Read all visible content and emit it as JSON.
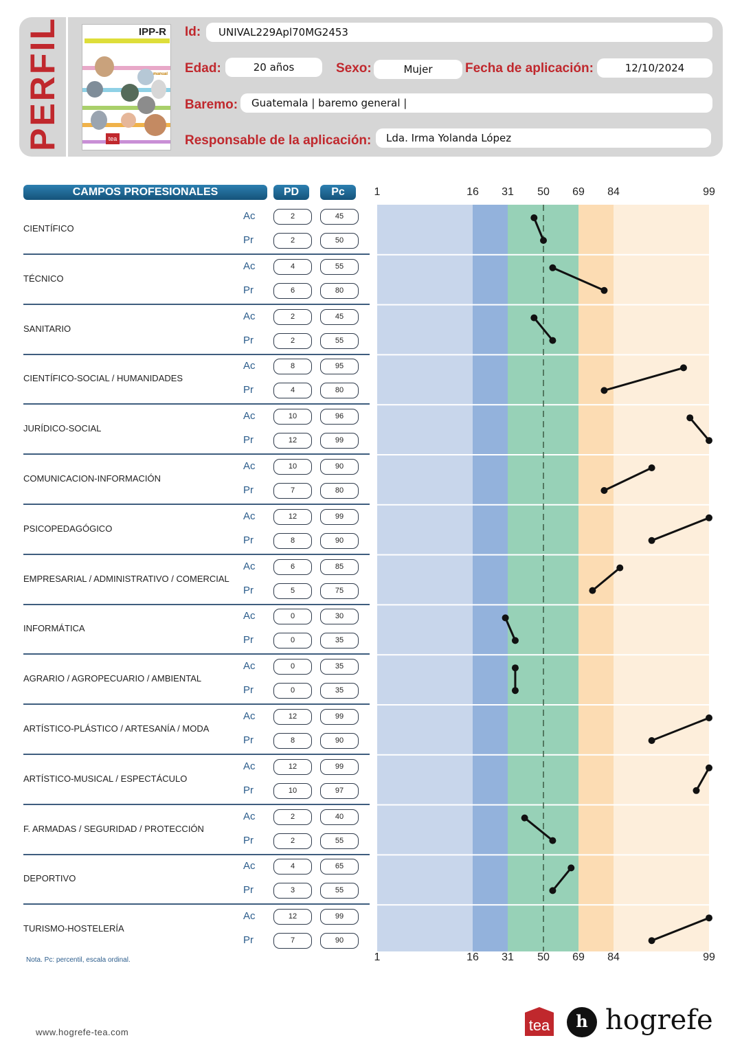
{
  "header": {
    "title": "PERFIL",
    "cover": {
      "title": "IPP-R",
      "manual": "manual",
      "publisher": "tea"
    },
    "id_label": "Id:",
    "id_value": "UNIVAL229Apl70MG2453",
    "edad_label": "Edad:",
    "edad_value": "20 años",
    "sexo_label": "Sexo:",
    "sexo_value": "Mujer",
    "fecha_label": "Fecha de aplicación:",
    "fecha_value": "12/10/2024",
    "baremo_label": "Baremo:",
    "baremo_value": "Guatemala | baremo general |",
    "responsable_label": "Responsable de la aplicación:",
    "responsable_value": "Lda. Irma Yolanda López"
  },
  "table": {
    "col_campos": "CAMPOS PROFESIONALES",
    "col_pd": "PD",
    "col_pc": "Pc",
    "type_ac": "Ac",
    "type_pr": "Pr",
    "rows": [
      {
        "name": "CIENTÍFICO",
        "ac_pd": "2",
        "ac_pc": "45",
        "pr_pd": "2",
        "pr_pc": "50"
      },
      {
        "name": "TÉCNICO",
        "ac_pd": "4",
        "ac_pc": "55",
        "pr_pd": "6",
        "pr_pc": "80"
      },
      {
        "name": "SANITARIO",
        "ac_pd": "2",
        "ac_pc": "45",
        "pr_pd": "2",
        "pr_pc": "55"
      },
      {
        "name": "CIENTÍFICO-SOCIAL / HUMANIDADES",
        "ac_pd": "8",
        "ac_pc": "95",
        "pr_pd": "4",
        "pr_pc": "80"
      },
      {
        "name": "JURÍDICO-SOCIAL",
        "ac_pd": "10",
        "ac_pc": "96",
        "pr_pd": "12",
        "pr_pc": "99"
      },
      {
        "name": "COMUNICACION-INFORMACIÓN",
        "ac_pd": "10",
        "ac_pc": "90",
        "pr_pd": "7",
        "pr_pc": "80"
      },
      {
        "name": "PSICOPEDAGÓGICO",
        "ac_pd": "12",
        "ac_pc": "99",
        "pr_pd": "8",
        "pr_pc": "90"
      },
      {
        "name": "EMPRESARIAL / ADMINISTRATIVO / COMERCIAL",
        "ac_pd": "6",
        "ac_pc": "85",
        "pr_pd": "5",
        "pr_pc": "75"
      },
      {
        "name": "INFORMÁTICA",
        "ac_pd": "0",
        "ac_pc": "30",
        "pr_pd": "0",
        "pr_pc": "35"
      },
      {
        "name": "AGRARIO / AGROPECUARIO / AMBIENTAL",
        "ac_pd": "0",
        "ac_pc": "35",
        "pr_pd": "0",
        "pr_pc": "35"
      },
      {
        "name": "ARTÍSTICO-PLÁSTICO / ARTESANÍA / MODA",
        "ac_pd": "12",
        "ac_pc": "99",
        "pr_pd": "8",
        "pr_pc": "90"
      },
      {
        "name": "ARTÍSTICO-MUSICAL / ESPECTÁCULO",
        "ac_pd": "12",
        "ac_pc": "99",
        "pr_pd": "10",
        "pr_pc": "97"
      },
      {
        "name": "F. ARMADAS / SEGURIDAD / PROTECCIÓN",
        "ac_pd": "2",
        "ac_pc": "40",
        "pr_pd": "2",
        "pr_pc": "55"
      },
      {
        "name": "DEPORTIVO",
        "ac_pd": "4",
        "ac_pc": "65",
        "pr_pd": "3",
        "pr_pc": "55"
      },
      {
        "name": "TURISMO-HOSTELERÍA",
        "ac_pd": "12",
        "ac_pc": "99",
        "pr_pd": "7",
        "pr_pc": "90"
      }
    ]
  },
  "chart_data": {
    "type": "line",
    "x_axis": "ordinal percentile scale",
    "ticks": [
      "1",
      "16",
      "31",
      "50",
      "69",
      "84",
      "99"
    ],
    "band_colors": [
      "#c8d6eb",
      "#93b2dc",
      "#97d1b7",
      "#fcdcb3",
      "#fdeedb"
    ],
    "reference_line": "50",
    "series": [
      {
        "name": "Ac",
        "values": [
          45,
          55,
          45,
          95,
          96,
          90,
          99,
          85,
          30,
          35,
          99,
          99,
          40,
          65,
          99
        ]
      },
      {
        "name": "Pr",
        "values": [
          50,
          80,
          55,
          80,
          99,
          80,
          90,
          75,
          35,
          35,
          90,
          97,
          55,
          55,
          90
        ]
      }
    ]
  },
  "footer": {
    "note": "Nota. Pc: percentil, escala ordinal.",
    "website": "www.hogrefe-tea.com",
    "tea_logo": "tea",
    "hogrefe_logo": "hogrefe",
    "hogrefe_icon": "h"
  }
}
